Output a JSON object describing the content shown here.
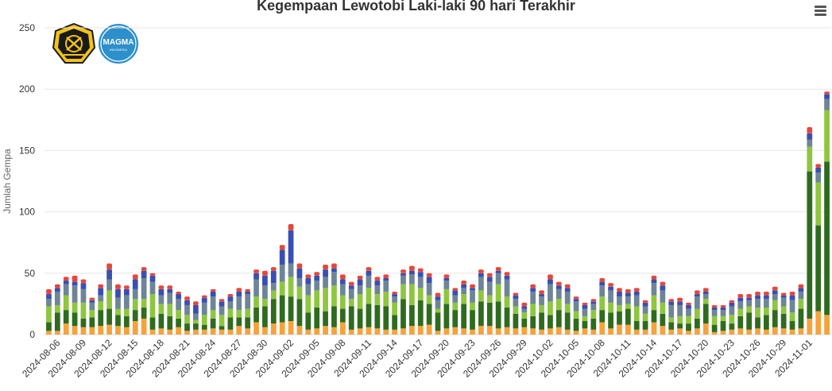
{
  "title": "Kegempaan Lewotobi Laki-laki 90 hari Terakhir",
  "menu_icon": "hamburger-menu-icon",
  "logos": {
    "left": "esdm-logo",
    "right": "magma-logo",
    "right_text": "MAGMA",
    "right_subtext": "INDONESIA"
  },
  "chart_data": {
    "type": "bar",
    "stacked": true,
    "ylabel": "Jumlah Gempa",
    "ylim": [
      0,
      250
    ],
    "yticks": [
      0,
      50,
      100,
      150,
      200,
      250
    ],
    "grid": true,
    "legend": false,
    "categories": [
      "2024-08-05",
      "2024-08-06",
      "2024-08-07",
      "2024-08-08",
      "2024-08-09",
      "2024-08-10",
      "2024-08-11",
      "2024-08-12",
      "2024-08-13",
      "2024-08-14",
      "2024-08-15",
      "2024-08-16",
      "2024-08-17",
      "2024-08-18",
      "2024-08-19",
      "2024-08-20",
      "2024-08-21",
      "2024-08-22",
      "2024-08-23",
      "2024-08-24",
      "2024-08-25",
      "2024-08-26",
      "2024-08-27",
      "2024-08-28",
      "2024-08-29",
      "2024-08-30",
      "2024-08-31",
      "2024-09-01",
      "2024-09-02",
      "2024-09-03",
      "2024-09-04",
      "2024-09-05",
      "2024-09-06",
      "2024-09-07",
      "2024-09-08",
      "2024-09-09",
      "2024-09-10",
      "2024-09-11",
      "2024-09-12",
      "2024-09-13",
      "2024-09-14",
      "2024-09-15",
      "2024-09-16",
      "2024-09-17",
      "2024-09-18",
      "2024-09-19",
      "2024-09-20",
      "2024-09-21",
      "2024-09-22",
      "2024-09-23",
      "2024-09-24",
      "2024-09-25",
      "2024-09-26",
      "2024-09-27",
      "2024-09-28",
      "2024-09-29",
      "2024-09-30",
      "2024-10-01",
      "2024-10-02",
      "2024-10-03",
      "2024-10-04",
      "2024-10-05",
      "2024-10-06",
      "2024-10-07",
      "2024-10-08",
      "2024-10-09",
      "2024-10-10",
      "2024-10-11",
      "2024-10-12",
      "2024-10-13",
      "2024-10-14",
      "2024-10-15",
      "2024-10-16",
      "2024-10-17",
      "2024-10-18",
      "2024-10-19",
      "2024-10-20",
      "2024-10-21",
      "2024-10-22",
      "2024-10-23",
      "2024-10-24",
      "2024-10-25",
      "2024-10-26",
      "2024-10-27",
      "2024-10-28",
      "2024-10-29",
      "2024-10-30",
      "2024-10-31",
      "2024-11-01",
      "2024-11-02",
      "2024-11-03"
    ],
    "xticks": [
      "2024-08-06",
      "2024-08-09",
      "2024-08-12",
      "2024-08-15",
      "2024-08-18",
      "2024-08-21",
      "2024-08-24",
      "2024-08-27",
      "2024-08-30",
      "2024-09-02",
      "2024-09-05",
      "2024-09-08",
      "2024-09-11",
      "2024-09-14",
      "2024-09-17",
      "2024-09-20",
      "2024-09-23",
      "2024-09-26",
      "2024-09-29",
      "2024-10-02",
      "2024-10-05",
      "2024-10-08",
      "2024-10-11",
      "2024-10-14",
      "2024-10-17",
      "2024-10-20",
      "2024-10-23",
      "2024-10-26",
      "2024-10-29",
      "2024-11-01"
    ],
    "series": [
      {
        "color": "#f7a23a",
        "values": [
          3,
          3,
          9,
          7,
          6,
          6,
          7,
          8,
          7,
          6,
          11,
          13,
          4,
          5,
          4,
          6,
          3,
          4,
          4,
          5,
          4,
          4,
          7,
          5,
          10,
          6,
          9,
          10,
          11,
          7,
          4,
          5,
          7,
          6,
          10,
          4,
          5,
          6,
          5,
          4,
          4,
          5,
          7,
          7,
          8,
          3,
          5,
          6,
          5,
          4,
          7,
          7,
          5,
          6,
          5,
          6,
          5,
          4,
          5,
          6,
          4,
          3,
          5,
          4,
          10,
          5,
          8,
          8,
          4,
          4,
          10,
          7,
          4,
          5,
          3,
          5,
          9,
          2,
          3,
          4,
          5,
          4,
          5,
          4,
          6,
          5,
          4,
          5,
          13,
          19,
          16
        ]
      },
      {
        "color": "#2f6b1f",
        "values": [
          7,
          15,
          11,
          11,
          7,
          8,
          13,
          13,
          9,
          9,
          9,
          9,
          10,
          12,
          11,
          7,
          6,
          5,
          4,
          8,
          3,
          10,
          7,
          9,
          12,
          17,
          20,
          22,
          20,
          22,
          14,
          17,
          12,
          17,
          11,
          19,
          16,
          19,
          19,
          19,
          12,
          24,
          17,
          21,
          17,
          15,
          20,
          14,
          20,
          16,
          20,
          19,
          22,
          16,
          12,
          7,
          10,
          14,
          11,
          14,
          14,
          10,
          6,
          9,
          10,
          13,
          11,
          13,
          7,
          7,
          10,
          10,
          6,
          4,
          6,
          8,
          16,
          6,
          8,
          5,
          10,
          14,
          9,
          12,
          14,
          12,
          7,
          16,
          120,
          70,
          125
        ]
      },
      {
        "color": "#8ec63f",
        "values": [
          13,
          6,
          12,
          8,
          13,
          6,
          7,
          15,
          5,
          6,
          9,
          7,
          19,
          8,
          10,
          7,
          7,
          3,
          8,
          7,
          9,
          7,
          6,
          7,
          9,
          6,
          7,
          11,
          16,
          10,
          14,
          14,
          19,
          17,
          11,
          6,
          12,
          13,
          9,
          12,
          10,
          12,
          17,
          10,
          7,
          3,
          12,
          6,
          8,
          6,
          9,
          6,
          14,
          9,
          6,
          5,
          10,
          6,
          11,
          9,
          7,
          6,
          4,
          7,
          11,
          8,
          5,
          4,
          12,
          6,
          12,
          9,
          4,
          6,
          6,
          8,
          4,
          7,
          4,
          7,
          6,
          5,
          8,
          6,
          8,
          6,
          7,
          8,
          20,
          35,
          42
        ]
      },
      {
        "color": "#6e8597",
        "values": [
          6,
          11,
          9,
          14,
          11,
          6,
          5,
          9,
          9,
          11,
          8,
          17,
          10,
          7,
          9,
          9,
          8,
          5,
          10,
          11,
          7,
          6,
          11,
          12,
          14,
          11,
          6,
          14,
          11,
          7,
          9,
          8,
          9,
          11,
          9,
          8,
          7,
          10,
          7,
          9,
          5,
          7,
          8,
          9,
          10,
          7,
          7,
          6,
          5,
          10,
          11,
          11,
          9,
          14,
          6,
          3,
          10,
          7,
          14,
          8,
          10,
          8,
          6,
          5,
          9,
          10,
          7,
          6,
          9,
          6,
          10,
          10,
          10,
          9,
          6,
          10,
          4,
          5,
          5,
          7,
          6,
          5,
          7,
          7,
          5,
          7,
          10,
          6,
          6,
          8,
          9
        ]
      },
      {
        "color": "#3a4fb2",
        "values": [
          4,
          3,
          3,
          3,
          5,
          2,
          6,
          8,
          7,
          5,
          8,
          6,
          5,
          5,
          3,
          4,
          4,
          7,
          4,
          4,
          4,
          4,
          4,
          2,
          5,
          8,
          10,
          12,
          27,
          8,
          5,
          4,
          6,
          3,
          4,
          3,
          5,
          4,
          4,
          2,
          2,
          2,
          3,
          4,
          5,
          3,
          2,
          4,
          3,
          2,
          3,
          4,
          2,
          3,
          3,
          2,
          3,
          2,
          4,
          3,
          3,
          2,
          3,
          2,
          3,
          3,
          4,
          3,
          3,
          3,
          3,
          4,
          3,
          3,
          3,
          2,
          2,
          2,
          2,
          3,
          3,
          2,
          3,
          3,
          3,
          2,
          4,
          3,
          5,
          4,
          4
        ]
      },
      {
        "color": "#e8463a",
        "values": [
          4,
          3,
          3,
          5,
          3,
          2,
          3,
          5,
          4,
          3,
          4,
          3,
          2,
          3,
          3,
          2,
          3,
          3,
          2,
          2,
          2,
          2,
          3,
          2,
          3,
          4,
          3,
          4,
          5,
          4,
          3,
          3,
          4,
          4,
          4,
          3,
          3,
          3,
          3,
          3,
          2,
          3,
          4,
          3,
          3,
          3,
          3,
          2,
          3,
          3,
          3,
          3,
          3,
          3,
          2,
          3,
          3,
          3,
          4,
          3,
          3,
          2,
          2,
          2,
          3,
          3,
          3,
          3,
          3,
          2,
          3,
          3,
          2,
          3,
          2,
          3,
          3,
          2,
          2,
          2,
          3,
          3,
          3,
          3,
          3,
          2,
          3,
          3,
          5,
          3,
          2
        ]
      }
    ]
  }
}
